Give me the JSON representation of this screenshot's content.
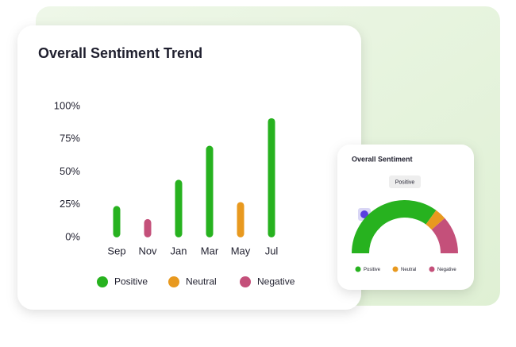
{
  "chart_data": [
    {
      "type": "bar",
      "title": "Overall Sentiment Trend",
      "categories": [
        "Sep",
        "Nov",
        "Jan",
        "Mar",
        "May",
        "Jul"
      ],
      "series": [
        {
          "name": "Positive",
          "color": "#27b21f",
          "values": [
            24,
            null,
            44,
            70,
            null,
            91
          ]
        },
        {
          "name": "Neutral",
          "color": "#e8991f",
          "values": [
            null,
            null,
            null,
            null,
            27,
            null
          ]
        },
        {
          "name": "Negative",
          "color": "#c4507a",
          "values": [
            null,
            14,
            null,
            null,
            null,
            null
          ]
        }
      ],
      "ylim": [
        0,
        100
      ],
      "yticks": [
        {
          "value": 0,
          "label": "0%"
        },
        {
          "value": 25,
          "label": "25%"
        },
        {
          "value": 50,
          "label": "50%"
        },
        {
          "value": 75,
          "label": "75%"
        },
        {
          "value": 100,
          "label": "100%"
        }
      ]
    },
    {
      "type": "semi-donut",
      "title": "Overall Sentiment",
      "badge": "Positive",
      "categories": [
        "Positive",
        "Neutral",
        "Negative"
      ],
      "values": [
        70,
        7,
        23
      ],
      "colors": [
        "#27b21f",
        "#e8991f",
        "#c4507a"
      ]
    }
  ]
}
